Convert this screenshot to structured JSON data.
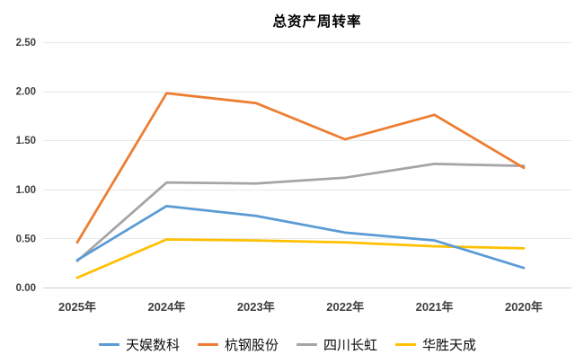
{
  "chart": {
    "title": "总资产周转率"
  },
  "chart_data": {
    "type": "line",
    "title": "总资产周转率",
    "categories": [
      "2025年",
      "2024年",
      "2023年",
      "2022年",
      "2021年",
      "2020年"
    ],
    "series": [
      {
        "name": "天娱数科",
        "color": "#5B9BD5",
        "values": [
          0.28,
          0.83,
          0.73,
          0.56,
          0.48,
          0.2
        ]
      },
      {
        "name": "杭钢股份",
        "color": "#ED7D31",
        "values": [
          0.46,
          1.98,
          1.88,
          1.51,
          1.76,
          1.22
        ]
      },
      {
        "name": "四川长虹",
        "color": "#A5A5A5",
        "values": [
          0.27,
          1.07,
          1.06,
          1.12,
          1.26,
          1.24
        ]
      },
      {
        "name": "华胜天成",
        "color": "#FFC000",
        "values": [
          0.1,
          0.49,
          0.48,
          0.46,
          0.42,
          0.4
        ]
      }
    ],
    "ylim": [
      0,
      2.5
    ],
    "y_tick_step": 0.5,
    "y_tick_labels": [
      "0.00",
      "0.50",
      "1.00",
      "1.50",
      "2.00",
      "2.50"
    ],
    "grid": true,
    "legend_position": "bottom",
    "xlabel": "",
    "ylabel": ""
  },
  "colors": {
    "background": "#FFFFFF",
    "axis_text": "#3F3F3F",
    "gridline": "#E8E8E8",
    "axis_line": "#CFCFCF",
    "title_text": "#000000"
  }
}
